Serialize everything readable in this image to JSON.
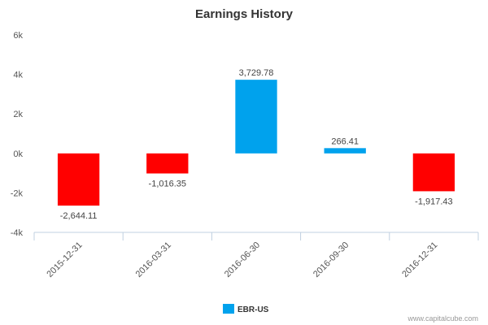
{
  "chart_data": {
    "type": "bar",
    "title": "Earnings History",
    "xlabel": "",
    "ylabel": "",
    "categories": [
      "2015-12-31",
      "2016-03-31",
      "2016-06-30",
      "2016-09-30",
      "2016-12-31"
    ],
    "series": [
      {
        "name": "EBR-US",
        "values": [
          -2644.11,
          -1016.35,
          3729.78,
          266.41,
          -1917.43
        ],
        "data_labels": [
          "-2,644.11",
          "-1,016.35",
          "3,729.78",
          "266.41",
          "-1,917.43"
        ]
      }
    ],
    "ylim": [
      -4000,
      6000
    ],
    "yticks": [
      -4000,
      -2000,
      0,
      2000,
      4000,
      6000
    ],
    "ytick_labels": [
      "-4k",
      "-2k",
      "0k",
      "2k",
      "4k",
      "6k"
    ],
    "grid": false,
    "legend": "bottom-center",
    "colors": {
      "positive": "#00a2ed",
      "negative": "#ff0000"
    }
  },
  "legend": {
    "label": "EBR-US",
    "color": "#00a2ed"
  },
  "credit": "www.capitalcube.com"
}
